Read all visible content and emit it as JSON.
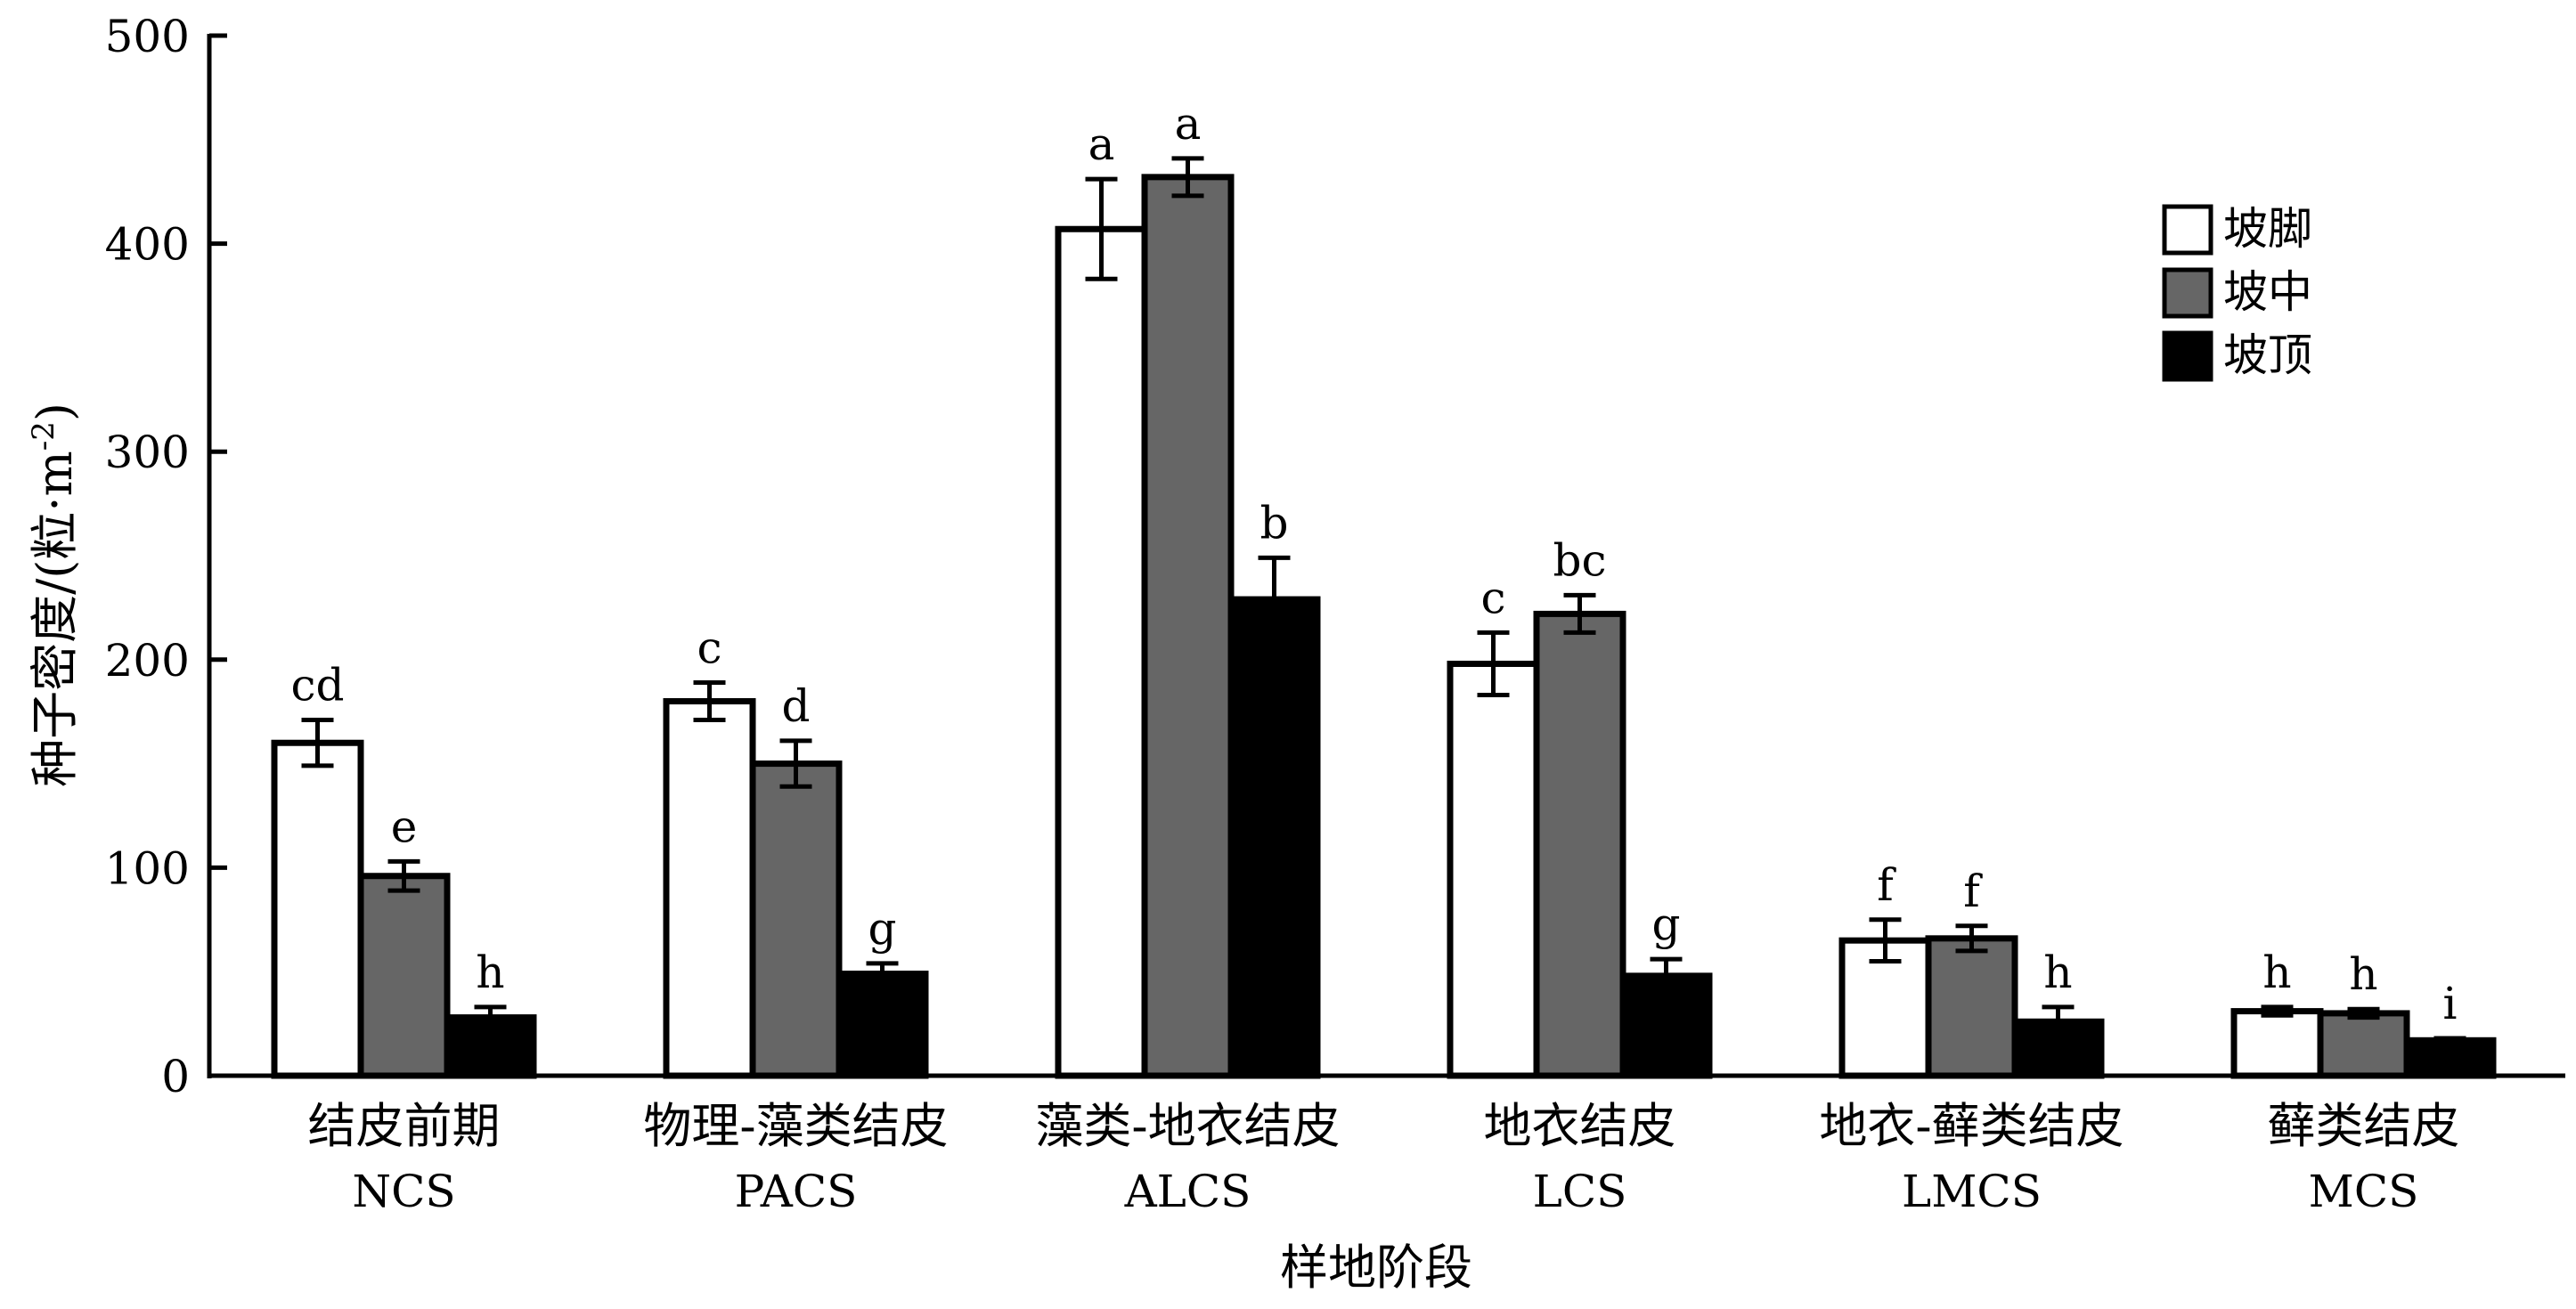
{
  "chart_data": {
    "type": "bar",
    "ylabel": "种子密度/(粒·m",
    "ylabel_superscript": "-2",
    "ylabel_close": ")",
    "xlabel": "样地阶段",
    "ylim": [
      0,
      500
    ],
    "yticks": [
      "0",
      "100",
      "200",
      "300",
      "400",
      "500"
    ],
    "ytick_values": [
      0,
      100,
      200,
      300,
      400,
      500
    ],
    "categories": [
      {
        "cn": "结皮前期",
        "en": "NCS"
      },
      {
        "cn": "物理-藻类结皮",
        "en": "PACS"
      },
      {
        "cn": "藻类-地衣结皮",
        "en": "ALCS"
      },
      {
        "cn": "地衣结皮",
        "en": "LCS"
      },
      {
        "cn": "地衣-藓类结皮",
        "en": "LMCS"
      },
      {
        "cn": "藓类结皮",
        "en": "MCS"
      }
    ],
    "series": [
      {
        "name": "坡脚",
        "color": "#ffffff",
        "values": [
          160,
          180,
          407,
          198,
          65,
          31
        ],
        "errors": [
          11,
          9,
          24,
          15,
          10,
          2
        ],
        "labels": [
          "cd",
          "c",
          "a",
          "c",
          "f",
          "h"
        ]
      },
      {
        "name": "坡中",
        "color": "#666666",
        "values": [
          96,
          150,
          432,
          222,
          66,
          30
        ],
        "errors": [
          7,
          11,
          9,
          9,
          6,
          2
        ],
        "labels": [
          "e",
          "d",
          "a",
          "bc",
          "f",
          "h"
        ]
      },
      {
        "name": "坡顶",
        "color": "#000000",
        "values": [
          28,
          49,
          229,
          48,
          26,
          17
        ],
        "errors": [
          5,
          5,
          20,
          8,
          7,
          1
        ],
        "labels": [
          "h",
          "g",
          "b",
          "g",
          "h",
          "i"
        ]
      }
    ],
    "legend_position": "top-right",
    "grid": false
  }
}
